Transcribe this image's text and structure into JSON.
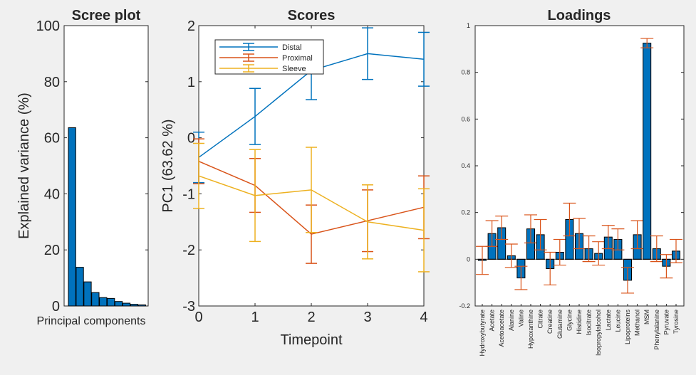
{
  "figure": {
    "background": "#f0f0f0",
    "axes_bg": "#ffffff",
    "axis_color": "#262626"
  },
  "chart_data": [
    {
      "type": "bar",
      "title": "Scree plot",
      "xlabel": "Principal components",
      "ylabel": "Explained variance (%)",
      "ylim": [
        0,
        100
      ],
      "yticks": [
        0,
        20,
        40,
        60,
        80,
        100
      ],
      "values": [
        63.6,
        13.8,
        8.6,
        4.8,
        3.0,
        2.7,
        1.6,
        1.0,
        0.6,
        0.4
      ],
      "bar_color": "#0072bd",
      "grid": false
    },
    {
      "type": "line",
      "title": "Scores",
      "xlabel": "Timepoint",
      "ylabel": "PC1 (63.62 %)",
      "xlim": [
        0,
        4
      ],
      "ylim": [
        -3,
        2
      ],
      "xticks": [
        0,
        1,
        2,
        3,
        4
      ],
      "yticks": [
        -3,
        -2,
        -1,
        0,
        1,
        2
      ],
      "x": [
        0,
        1,
        2,
        3,
        4
      ],
      "legend": "top-left",
      "error_bars": true,
      "series": [
        {
          "name": "Distal",
          "color": "#0072bd",
          "values": [
            -0.35,
            0.38,
            1.2,
            1.5,
            1.4
          ],
          "err": [
            0.45,
            0.5,
            0.52,
            0.46,
            0.48
          ]
        },
        {
          "name": "Proximal",
          "color": "#d95319",
          "values": [
            -0.42,
            -0.85,
            -1.72,
            -1.48,
            -1.24
          ],
          "err": [
            0.4,
            0.48,
            0.52,
            0.55,
            0.56
          ]
        },
        {
          "name": "Sleeve",
          "color": "#edb120",
          "values": [
            -0.68,
            -1.03,
            -0.93,
            -1.5,
            -1.65
          ],
          "err": [
            0.58,
            0.82,
            0.76,
            0.66,
            0.74
          ]
        }
      ]
    },
    {
      "type": "bar",
      "title": "Loadings",
      "ylim": [
        -0.2,
        1
      ],
      "yticks": [
        -0.2,
        0,
        0.2,
        0.4,
        0.6,
        0.8,
        1
      ],
      "ytick_labels": [
        "-0.2",
        "0",
        "0.2",
        "0.4",
        "0.6",
        "0.8",
        "1"
      ],
      "categories": [
        "Hydroxybutyrate",
        "Acetate",
        "Acetoacetate",
        "Alanine",
        "Valine",
        "Hypoxanthine",
        "Citrate",
        "Creatine",
        "Glutamine",
        "Glycine",
        "Histidine",
        "Isocitrate",
        "Isopropylalcohol",
        "Lactate",
        "Leucine",
        "Lipoproteins",
        "Methanol",
        "MSM",
        "Phenylalanine",
        "Pyruvate",
        "Tyrosine"
      ],
      "values": [
        -0.005,
        0.11,
        0.135,
        0.015,
        -0.08,
        0.13,
        0.105,
        -0.04,
        0.03,
        0.17,
        0.11,
        0.045,
        0.025,
        0.095,
        0.085,
        -0.09,
        0.105,
        0.925,
        0.045,
        -0.03,
        0.035
      ],
      "err": [
        0.06,
        0.055,
        0.05,
        0.05,
        0.05,
        0.06,
        0.065,
        0.07,
        0.055,
        0.07,
        0.065,
        0.055,
        0.05,
        0.05,
        0.045,
        0.055,
        0.06,
        0.02,
        0.055,
        0.05,
        0.05
      ],
      "bar_color": "#0072bd",
      "err_color": "#d95319",
      "grid": false
    }
  ]
}
